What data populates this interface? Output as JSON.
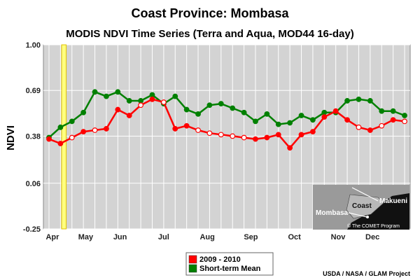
{
  "chart_data": {
    "type": "line",
    "title": "Coast Province: Mombasa",
    "subtitle": "MODIS NDVI Time Series (Terra and Aqua, MOD44 16-day)",
    "ylabel": "NDVI",
    "ylim": [
      -0.25,
      1.0
    ],
    "yticks": [
      "1.00",
      "0.69",
      "0.38",
      "0.06",
      "-0.25"
    ],
    "ytick_values": [
      1.0,
      0.69,
      0.38,
      0.06,
      -0.25
    ],
    "xlim": [
      0,
      31
    ],
    "xticks": [
      {
        "label": "Apr",
        "x": 0.3
      },
      {
        "label": "May",
        "x": 3.2
      },
      {
        "label": "Jun",
        "x": 6.2
      },
      {
        "label": "Jul",
        "x": 10.0
      },
      {
        "label": "Aug",
        "x": 13.8
      },
      {
        "label": "Sep",
        "x": 17.6
      },
      {
        "label": "Oct",
        "x": 21.4
      },
      {
        "label": "Nov",
        "x": 25.2
      },
      {
        "label": "Dec",
        "x": 28.2
      }
    ],
    "highlight_band": {
      "from": 1.1,
      "to": 1.5,
      "color": "#ffff80"
    },
    "grid": true,
    "legend_position": "bottom-center",
    "series": [
      {
        "name": "2009 - 2010",
        "color": "#ff0000",
        "x": [
          0,
          1,
          2,
          3,
          4,
          5,
          6,
          7,
          8,
          9,
          10,
          11,
          12,
          13,
          14,
          15,
          16,
          17,
          18,
          19,
          20,
          21,
          22,
          23,
          24,
          25,
          26,
          27,
          28,
          29,
          30,
          31
        ],
        "values": [
          0.36,
          0.33,
          0.37,
          0.41,
          0.42,
          0.43,
          0.56,
          0.52,
          0.59,
          0.63,
          0.61,
          0.43,
          0.45,
          0.42,
          0.4,
          0.39,
          0.38,
          0.37,
          0.36,
          0.37,
          0.39,
          0.3,
          0.39,
          0.41,
          0.51,
          0.55,
          0.49,
          0.44,
          0.42,
          0.45,
          0.49,
          0.48
        ],
        "filled": [
          true,
          true,
          false,
          true,
          false,
          true,
          true,
          true,
          false,
          true,
          false,
          true,
          true,
          false,
          false,
          false,
          false,
          false,
          true,
          true,
          true,
          true,
          true,
          true,
          true,
          true,
          true,
          false,
          true,
          false,
          true,
          false
        ]
      },
      {
        "name": "Short-term Mean",
        "color": "#008000",
        "x": [
          0,
          1,
          2,
          3,
          4,
          5,
          6,
          7,
          8,
          9,
          10,
          11,
          12,
          13,
          14,
          15,
          16,
          17,
          18,
          19,
          20,
          21,
          22,
          23,
          24,
          25,
          26,
          27,
          28,
          29,
          30,
          31
        ],
        "values": [
          0.37,
          0.44,
          0.48,
          0.54,
          0.68,
          0.65,
          0.68,
          0.62,
          0.62,
          0.66,
          0.6,
          0.65,
          0.56,
          0.53,
          0.59,
          0.6,
          0.57,
          0.54,
          0.48,
          0.53,
          0.46,
          0.47,
          0.52,
          0.49,
          0.54,
          0.54,
          0.62,
          0.63,
          0.62,
          0.55,
          0.55,
          0.52
        ]
      }
    ],
    "map_labels": [
      "Coast",
      "Makueni",
      "Mombasa"
    ],
    "map_credit": "© The COMET Program",
    "credit": "USDA / NASA / GLAM Project"
  },
  "colors": {
    "plot_bg": "#d3d3d3",
    "grid": "#ffffff",
    "red": "#ff0000",
    "green": "#008000",
    "map_bg": "#111111",
    "map_land": "#9a9a9a"
  }
}
